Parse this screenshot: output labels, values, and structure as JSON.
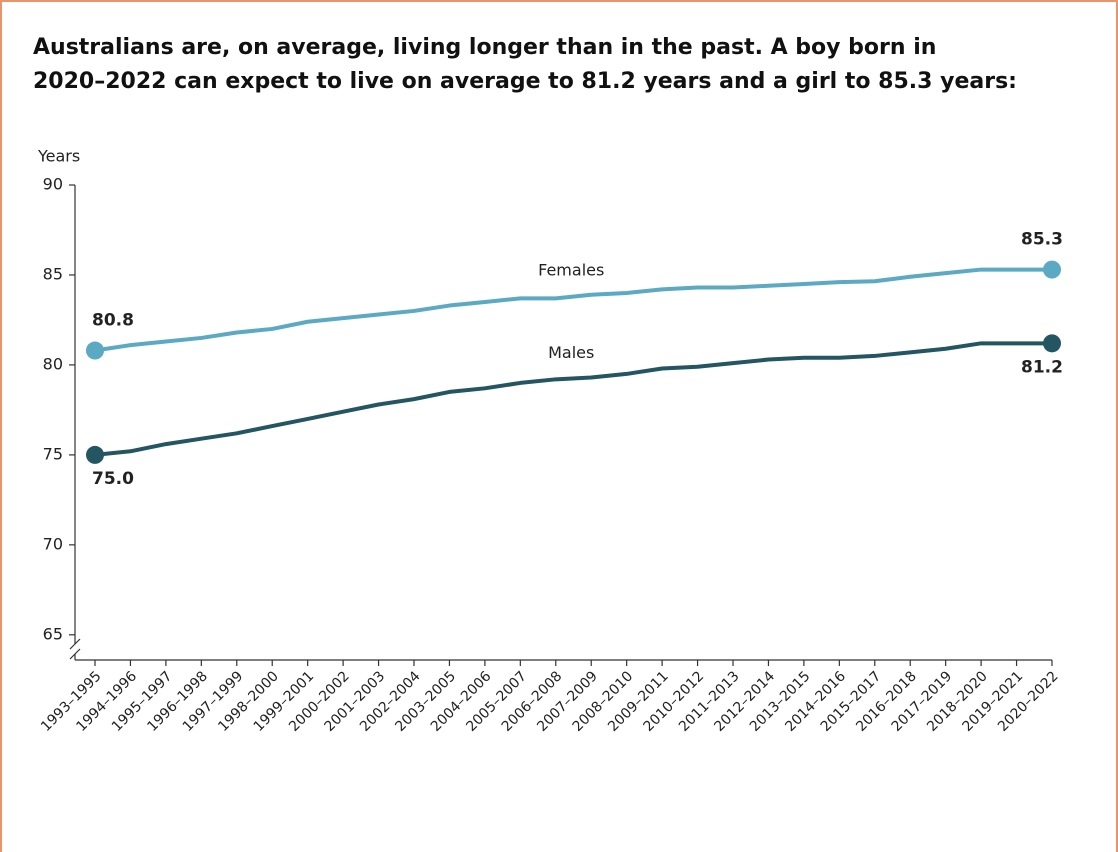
{
  "chart_data": {
    "type": "line",
    "title": [
      "Australians are, on average, living longer than in the past. A boy born in",
      "2020–2022 can expect to live on average to 81.2 years and a girl to 85.3 years:"
    ],
    "y_label": "Years",
    "categories": [
      "1993–1995",
      "1994–1996",
      "1995–1997",
      "1996–1998",
      "1997–1999",
      "1998–2000",
      "1999–2001",
      "2000–2002",
      "2001–2003",
      "2002–2004",
      "2003–2005",
      "2004–2006",
      "2005–2007",
      "2006–2008",
      "2007–2009",
      "2008–2010",
      "2009–2011",
      "2010–2012",
      "2011–2013",
      "2012–2014",
      "2013–2015",
      "2014–2016",
      "2015–2017",
      "2016–2018",
      "2017–2019",
      "2018–2020",
      "2019–2021",
      "2020–2022"
    ],
    "series": [
      {
        "name": "Females",
        "color": "#5ba9c3",
        "values": [
          80.8,
          81.1,
          81.3,
          81.5,
          81.8,
          82.0,
          82.4,
          82.6,
          82.8,
          83.0,
          83.3,
          83.5,
          83.7,
          83.7,
          83.9,
          84.0,
          84.2,
          84.3,
          84.3,
          84.4,
          84.5,
          84.6,
          84.65,
          84.9,
          85.1,
          85.3,
          85.3,
          85.3
        ],
        "value_labels": [
          "80.8",
          null,
          null,
          null,
          null,
          null,
          null,
          null,
          null,
          null,
          null,
          null,
          null,
          null,
          null,
          null,
          null,
          null,
          null,
          null,
          null,
          null,
          null,
          null,
          null,
          null,
          null,
          "85.3"
        ]
      },
      {
        "name": "Males",
        "color": "#235562",
        "values": [
          75.0,
          75.2,
          75.6,
          75.9,
          76.2,
          76.6,
          77.0,
          77.4,
          77.8,
          78.1,
          78.5,
          78.7,
          79.0,
          79.2,
          79.3,
          79.5,
          79.8,
          79.9,
          80.1,
          80.3,
          80.4,
          80.4,
          80.5,
          80.7,
          80.9,
          81.2,
          81.2,
          81.2
        ],
        "value_labels": [
          "75.0",
          null,
          null,
          null,
          null,
          null,
          null,
          null,
          null,
          null,
          null,
          null,
          null,
          null,
          null,
          null,
          null,
          null,
          null,
          null,
          null,
          null,
          null,
          null,
          null,
          null,
          null,
          "81.2"
        ]
      }
    ],
    "ylim": [
      63.6,
      90
    ],
    "yticks": [
      65,
      70,
      75,
      80,
      85,
      90
    ]
  }
}
